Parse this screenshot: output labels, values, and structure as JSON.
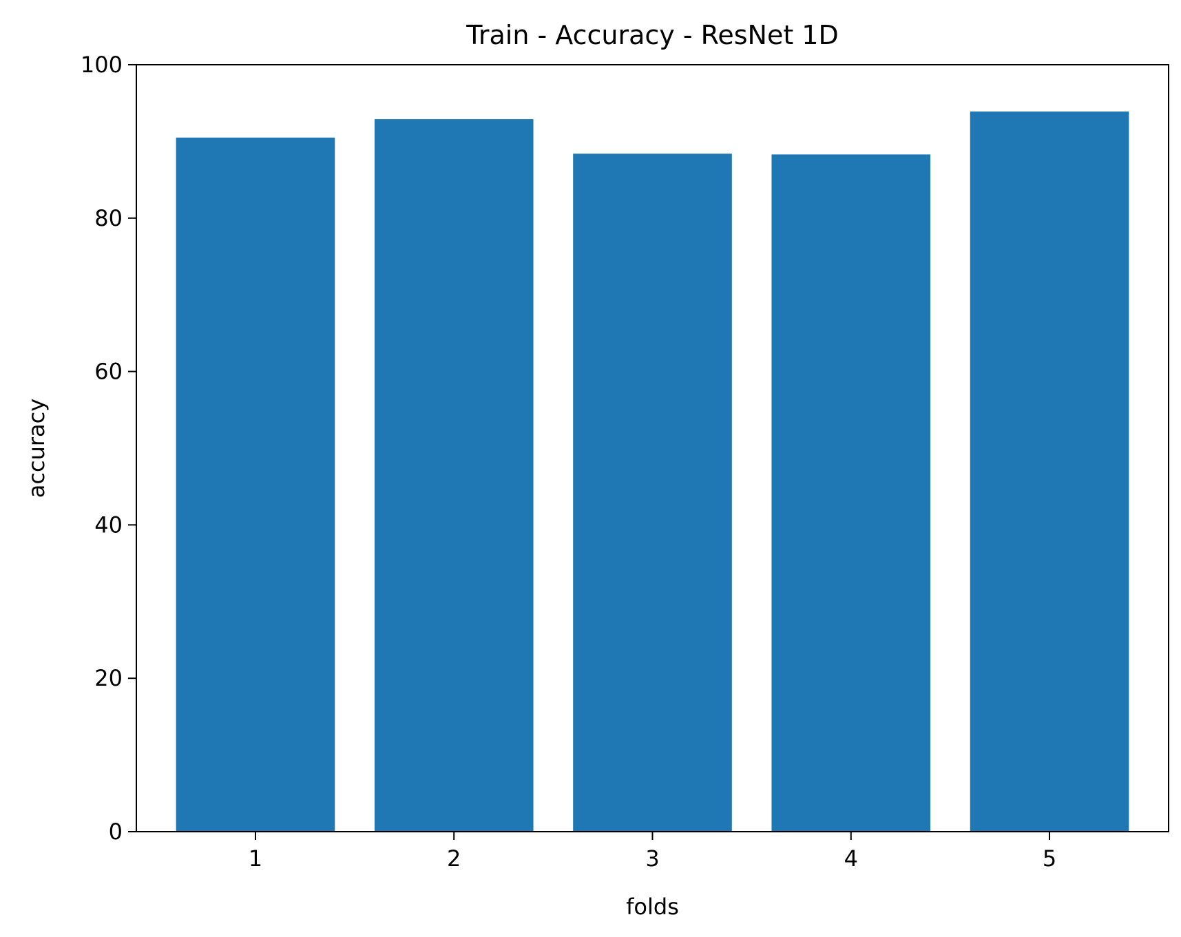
{
  "chart_data": {
    "type": "bar",
    "title": "Train - Accuracy - ResNet 1D",
    "xlabel": "folds",
    "ylabel": "accuracy",
    "categories": [
      "1",
      "2",
      "3",
      "4",
      "5"
    ],
    "values": [
      90.5,
      92.9,
      88.4,
      88.3,
      93.9
    ],
    "ylim": [
      0,
      100
    ],
    "yticks": [
      "0",
      "20",
      "40",
      "60",
      "80",
      "100"
    ],
    "ytick_values": [
      0,
      20,
      40,
      60,
      80,
      100
    ],
    "grid": false,
    "bar_color": "#1f77b4"
  }
}
